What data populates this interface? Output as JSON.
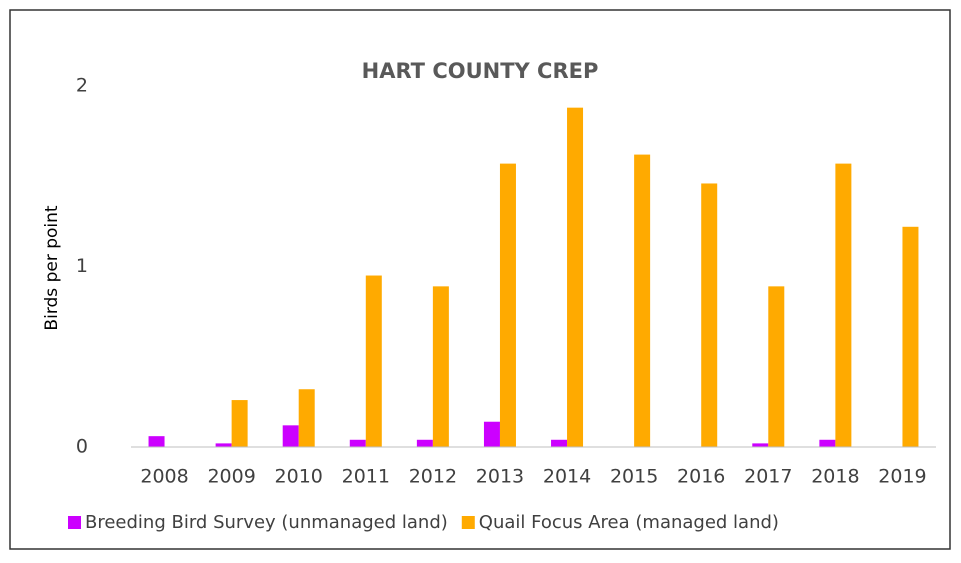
{
  "chart_data": {
    "type": "bar",
    "title": "HART COUNTY CREP",
    "y_label": "Birds per point",
    "categories": [
      "2008",
      "2009",
      "2010",
      "2011",
      "2012",
      "2013",
      "2014",
      "2015",
      "2016",
      "2017",
      "2018",
      "2019"
    ],
    "series": [
      {
        "name": "Breeding Bird Survey (unmanaged land)",
        "color": "#cc00ff",
        "values": [
          0.06,
          0.02,
          0.12,
          0.04,
          0.04,
          0.14,
          0.04,
          0,
          0,
          0.02,
          0.04,
          0
        ]
      },
      {
        "name": "Quail Focus Area (managed land)",
        "color": "#ffaa00",
        "values": [
          0,
          0.26,
          0.32,
          0.95,
          0.89,
          1.57,
          1.88,
          1.62,
          1.46,
          0.89,
          1.57,
          1.22
        ]
      }
    ],
    "ylim": [
      0,
      2
    ],
    "yticks": [
      0,
      1,
      2
    ],
    "grid": false,
    "legend": "bottom"
  }
}
